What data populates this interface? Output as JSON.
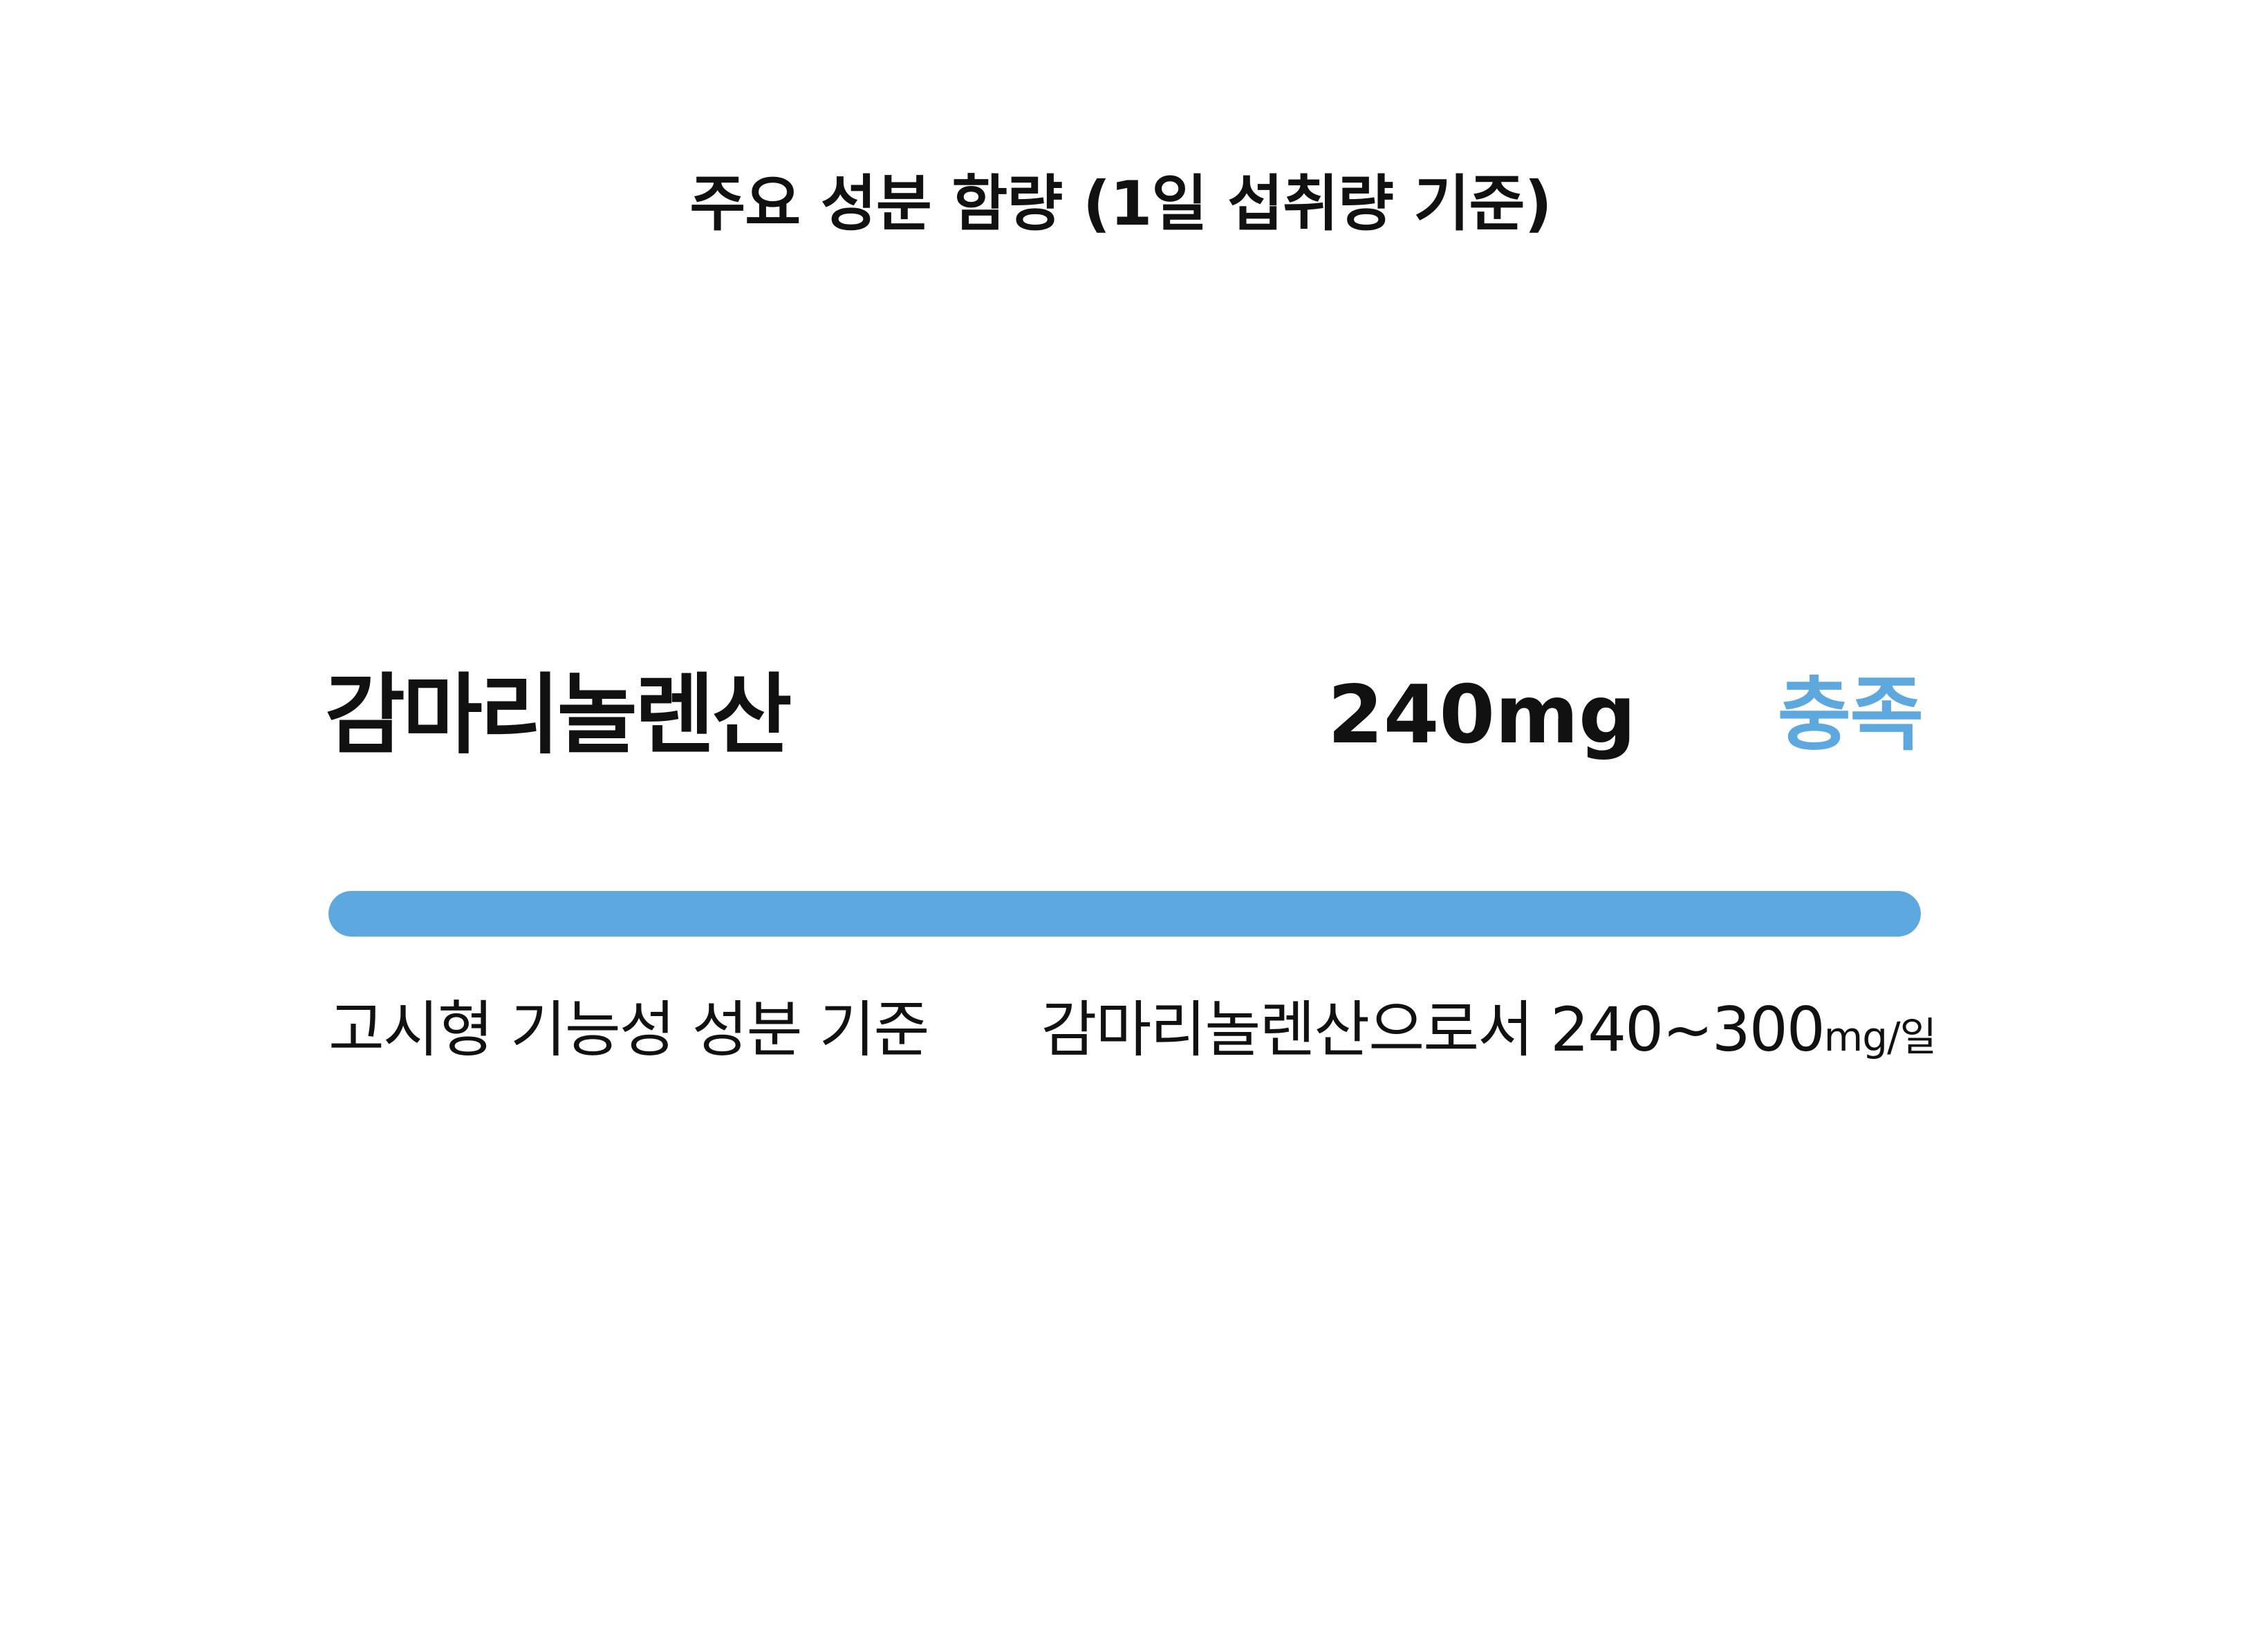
{
  "title": "주요 성분 함량 (1일 섭취량 기준)",
  "ingredient": {
    "name": "감마리놀렌산",
    "amount": "240mg",
    "status": "충족",
    "progress_percent": 100
  },
  "criteria": {
    "label": "고시형 기능성 성분 기준",
    "value_text": "감마리놀렌산으로서 240~300",
    "unit": "mg/일"
  },
  "colors": {
    "accent": "#5ea8e0",
    "text": "#111111",
    "background": "#ffffff"
  }
}
